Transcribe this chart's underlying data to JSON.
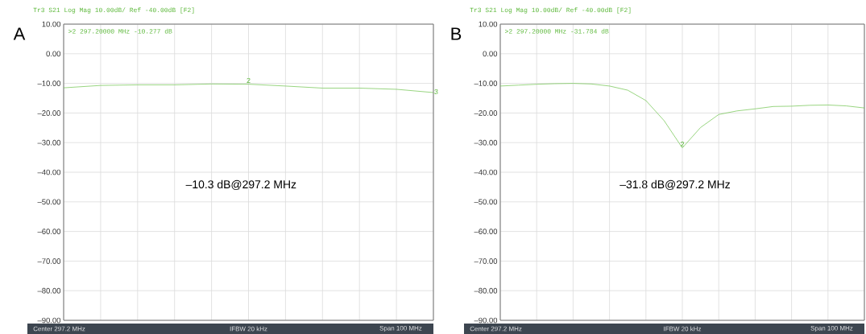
{
  "chart_data": [
    {
      "type": "line",
      "title": "A",
      "subtitle": "Tr3 S21 Log Mag 10.00dB/ Ref -40.00dB [F2]",
      "categories": [
        null,
        null,
        null,
        null,
        null,
        null,
        null,
        null,
        null,
        null,
        null
      ],
      "values": [
        -11.5,
        -10.7,
        -10.5,
        -10.5,
        -10.2,
        -10.277,
        -10.9,
        -11.6,
        -11.6,
        -12.0,
        -13.1
      ],
      "color": "#6cc24a",
      "ylim": [
        -90,
        10
      ],
      "yticks": [
        {
          "value": 10,
          "label": "10.00"
        },
        {
          "value": 0,
          "label": "0.00"
        },
        {
          "value": -10,
          "label": "–10.00"
        },
        {
          "value": -20,
          "label": "–20.00"
        },
        {
          "value": -30,
          "label": "–30.00"
        },
        {
          "value": -40,
          "label": "–40.00"
        },
        {
          "value": -50,
          "label": "–50.00"
        },
        {
          "value": -60,
          "label": "–60.00"
        },
        {
          "value": -70,
          "label": "–70.00"
        },
        {
          "value": -80,
          "label": "–80.00"
        },
        {
          "value": -90,
          "label": "–90.00"
        }
      ],
      "tick_labels": "y",
      "grid": true,
      "marker": "none",
      "line_style": "solid",
      "annotations": [
        ">2  297.20000 MHz -10.277 dB",
        "–10.3 dB@297.2 MHz",
        "Center 297.2 MHz",
        "IFBW 20 kHz",
        "Span 100 MHz",
        "2",
        "3"
      ]
    },
    {
      "type": "line",
      "title": "B",
      "subtitle": "Tr3 S21 Log Mag 10.00dB/ Ref -40.00dB [F2]",
      "categories": [
        null,
        null,
        null,
        null,
        null,
        null,
        null,
        null,
        null,
        null,
        null,
        null,
        null,
        null,
        null,
        null,
        null,
        null,
        null,
        null,
        null
      ],
      "values": [
        -10.9,
        -10.6,
        -10.3,
        -10.1,
        -10.0,
        -10.2,
        -10.9,
        -12.3,
        -15.8,
        -22.6,
        -31.784,
        -24.9,
        -20.5,
        -19.3,
        -18.6,
        -17.8,
        -17.7,
        -17.4,
        -17.3,
        -17.6,
        -18.3
      ],
      "color": "#6cc24a",
      "ylim": [
        -90,
        10
      ],
      "yticks": [
        {
          "value": 10,
          "label": "10.00"
        },
        {
          "value": 0,
          "label": "0.00"
        },
        {
          "value": -10,
          "label": "–10.00"
        },
        {
          "value": -20,
          "label": "–20.00"
        },
        {
          "value": -30,
          "label": "–30.00"
        },
        {
          "value": -40,
          "label": "–40.00"
        },
        {
          "value": -50,
          "label": "–50.00"
        },
        {
          "value": -60,
          "label": "–60.00"
        },
        {
          "value": -70,
          "label": "–70.00"
        },
        {
          "value": -80,
          "label": "–80.00"
        },
        {
          "value": -90,
          "label": "–90.00"
        }
      ],
      "tick_labels": "y",
      "grid": true,
      "marker": "none",
      "line_style": "solid",
      "annotations": [
        ">2  297.20000 MHz -31.784 dB",
        "–31.8 dB@297.2 MHz",
        "Center 297.2 MHz",
        "IFBW 20 kHz",
        "Span 100 MHz",
        "2"
      ]
    }
  ]
}
